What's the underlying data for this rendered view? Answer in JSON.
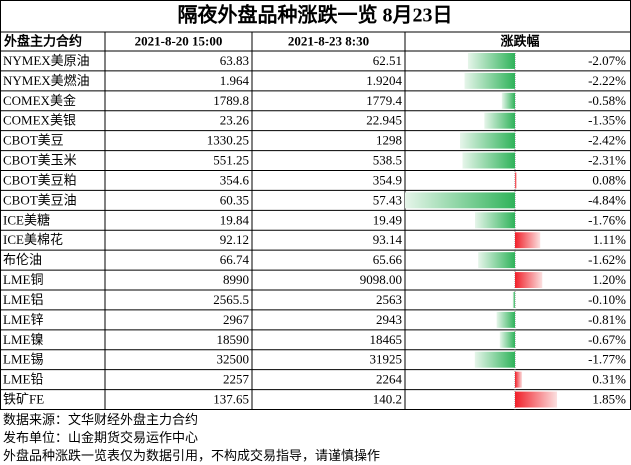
{
  "title": "隔夜外盘品种涨跌一览 8月23日",
  "table": {
    "headers": [
      "外盘主力合约",
      "2021-8-20 15:00",
      "2021-8-23 8:30",
      "涨跌幅"
    ],
    "rows": [
      {
        "name": "NYMEX美原油",
        "prev": "63.83",
        "curr": "62.51",
        "change": -2.07,
        "change_label": "-2.07%"
      },
      {
        "name": "NYMEX美燃油",
        "prev": "1.964",
        "curr": "1.9204",
        "change": -2.22,
        "change_label": "-2.22%"
      },
      {
        "name": "COMEX美金",
        "prev": "1789.8",
        "curr": "1779.4",
        "change": -0.58,
        "change_label": "-0.58%"
      },
      {
        "name": "COMEX美银",
        "prev": "23.26",
        "curr": "22.945",
        "change": -1.35,
        "change_label": "-1.35%"
      },
      {
        "name": "CBOT美豆",
        "prev": "1330.25",
        "curr": "1298",
        "change": -2.42,
        "change_label": "-2.42%"
      },
      {
        "name": "CBOT美玉米",
        "prev": "551.25",
        "curr": "538.5",
        "change": -2.31,
        "change_label": "-2.31%"
      },
      {
        "name": "CBOT美豆粕",
        "prev": "354.6",
        "curr": "354.9",
        "change": 0.08,
        "change_label": "0.08%"
      },
      {
        "name": "CBOT美豆油",
        "prev": "60.35",
        "curr": "57.43",
        "change": -4.84,
        "change_label": "-4.84%"
      },
      {
        "name": "ICE美糖",
        "prev": "19.84",
        "curr": "19.49",
        "change": -1.76,
        "change_label": "-1.76%"
      },
      {
        "name": "ICE美棉花",
        "prev": "92.12",
        "curr": "93.14",
        "change": 1.11,
        "change_label": "1.11%"
      },
      {
        "name": "布伦油",
        "prev": "66.74",
        "curr": "65.66",
        "change": -1.62,
        "change_label": "-1.62%"
      },
      {
        "name": "LME铜",
        "prev": "8990",
        "curr": "9098.00",
        "change": 1.2,
        "change_label": "1.20%"
      },
      {
        "name": "LME铝",
        "prev": "2565.5",
        "curr": "2563",
        "change": -0.1,
        "change_label": "-0.10%"
      },
      {
        "name": "LME锌",
        "prev": "2967",
        "curr": "2943",
        "change": -0.81,
        "change_label": "-0.81%"
      },
      {
        "name": "LME镍",
        "prev": "18590",
        "curr": "18465",
        "change": -0.67,
        "change_label": "-0.67%"
      },
      {
        "name": "LME锡",
        "prev": "32500",
        "curr": "31925",
        "change": -1.77,
        "change_label": "-1.77%"
      },
      {
        "name": "LME铅",
        "prev": "2257",
        "curr": "2264",
        "change": 0.31,
        "change_label": "0.31%"
      },
      {
        "name": "铁矿FE",
        "prev": "137.65",
        "curr": "140.2",
        "change": 1.85,
        "change_label": "1.85%"
      }
    ]
  },
  "notes": [
    "数据来源：文华财经外盘主力合约",
    "发布单位：山金期货交易运作中心",
    "外盘品种涨跌一览表仅为数据引用，不构成交易指导，请谨慎操作"
  ]
}
